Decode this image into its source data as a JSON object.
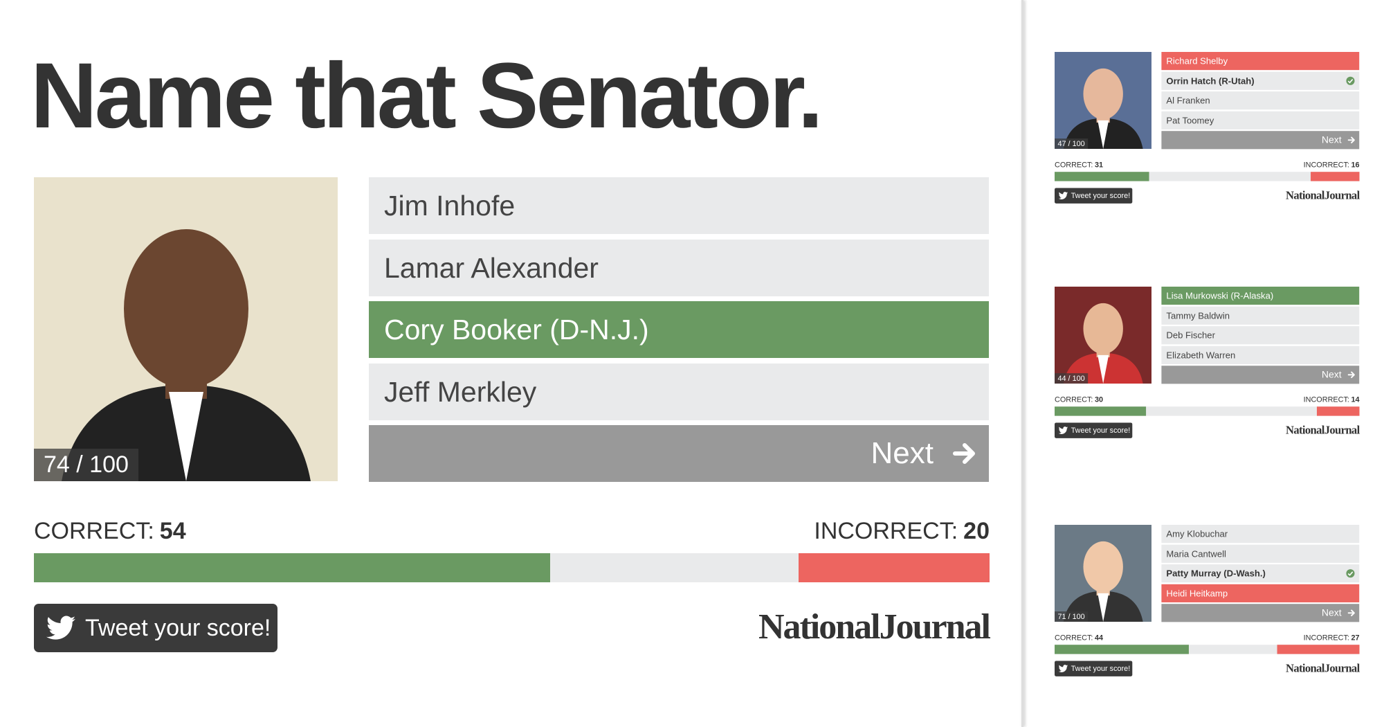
{
  "title": "Name that Senator.",
  "cards": [
    {
      "score": {
        "label": "74 / 100",
        "total": 100
      },
      "options": [
        {
          "name": "Jim Inhofe",
          "state": "default"
        },
        {
          "name": "Lamar Alexander",
          "state": "default"
        },
        {
          "name": "Cory Booker (D-N.J.)",
          "state": "selected-correct"
        },
        {
          "name": "Jeff Merkley",
          "state": "default"
        }
      ],
      "next": "Next",
      "correct_label": "CORRECT:",
      "correct": 54,
      "incorrect_label": "INCORRECT:",
      "incorrect": 20,
      "tweet": "Tweet your score!",
      "brand": "NationalJournal"
    },
    {
      "score": {
        "label": "47 / 100",
        "total": 100
      },
      "options": [
        {
          "name": "Richard Shelby",
          "state": "selected-wrong"
        },
        {
          "name": "Orrin Hatch (R-Utah)",
          "state": "answer"
        },
        {
          "name": "Al Franken",
          "state": "default"
        },
        {
          "name": "Pat Toomey",
          "state": "default"
        }
      ],
      "next": "Next",
      "correct_label": "CORRECT:",
      "correct": 31,
      "incorrect_label": "INCORRECT:",
      "incorrect": 16,
      "tweet": "Tweet your score!",
      "brand": "NationalJournal"
    },
    {
      "score": {
        "label": "44 / 100",
        "total": 100
      },
      "options": [
        {
          "name": "Lisa Murkowski (R-Alaska)",
          "state": "selected-correct"
        },
        {
          "name": "Tammy Baldwin",
          "state": "default"
        },
        {
          "name": "Deb Fischer",
          "state": "default"
        },
        {
          "name": "Elizabeth Warren",
          "state": "default"
        }
      ],
      "next": "Next",
      "correct_label": "CORRECT:",
      "correct": 30,
      "incorrect_label": "INCORRECT:",
      "incorrect": 14,
      "tweet": "Tweet your score!",
      "brand": "NationalJournal"
    },
    {
      "score": {
        "label": "71 / 100",
        "total": 100
      },
      "options": [
        {
          "name": "Amy Klobuchar",
          "state": "default"
        },
        {
          "name": "Maria Cantwell",
          "state": "default"
        },
        {
          "name": "Patty Murray (D-Wash.)",
          "state": "answer"
        },
        {
          "name": "Heidi Heitkamp",
          "state": "selected-wrong"
        }
      ],
      "next": "Next",
      "correct_label": "CORRECT:",
      "correct": 44,
      "incorrect_label": "INCORRECT:",
      "incorrect": 27,
      "tweet": "Tweet your score!",
      "brand": "NationalJournal"
    }
  ]
}
